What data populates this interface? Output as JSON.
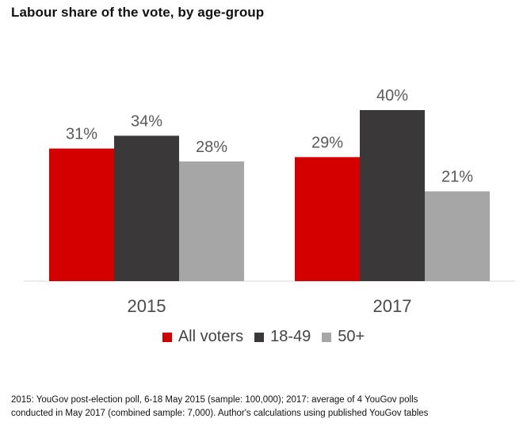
{
  "title": "Labour share of the vote, by age-group",
  "chart_data": {
    "type": "bar",
    "categories": [
      "2015",
      "2017"
    ],
    "series": [
      {
        "name": "All voters",
        "values": [
          31,
          29
        ],
        "labels": [
          "31%",
          "29%"
        ],
        "color": "#d40000"
      },
      {
        "name": "18-49",
        "values": [
          34,
          40
        ],
        "labels": [
          "34%",
          "40%"
        ],
        "color": "#3a3838"
      },
      {
        "name": "50+",
        "values": [
          28,
          21
        ],
        "labels": [
          "28%",
          "21%"
        ],
        "color": "#a6a6a6"
      }
    ],
    "ylim": [
      0,
      50
    ],
    "grid": false,
    "legend_position": "bottom"
  },
  "footnote": {
    "line1": "2015: YouGov post-election poll, 6-18 May 2015 (sample: 100,000); 2017: average of 4 YouGov polls",
    "line2": "conducted in May 2017 (combined sample: 7,000). Author's calculations using published YouGov tables"
  }
}
